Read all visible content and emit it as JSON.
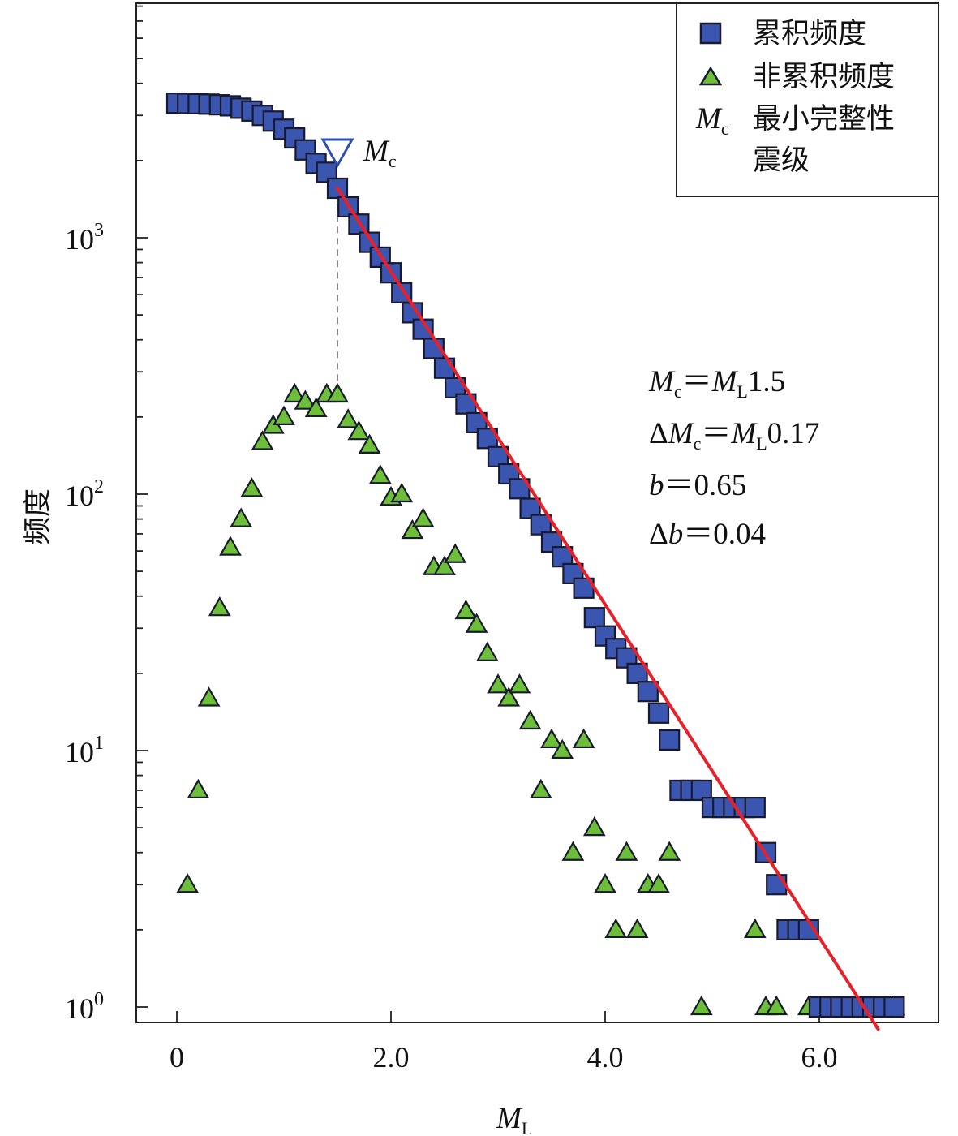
{
  "chart_data": {
    "type": "scatter",
    "title": "",
    "xlabel": {
      "main": "M",
      "sub": "L"
    },
    "ylabel": "频度",
    "yscale": "log",
    "xlim": [
      -0.35,
      7.1
    ],
    "ylim": [
      0.8,
      7500
    ],
    "xticks": [
      {
        "value": 0,
        "label": "0"
      },
      {
        "value": 2,
        "label": "2.0"
      },
      {
        "value": 4,
        "label": "4.0"
      },
      {
        "value": 6,
        "label": "6.0"
      }
    ],
    "yticks": [
      {
        "value": 1,
        "base": "10",
        "exp": "0"
      },
      {
        "value": 10,
        "base": "10",
        "exp": "1"
      },
      {
        "value": 100,
        "base": "10",
        "exp": "2"
      },
      {
        "value": 1000,
        "base": "10",
        "exp": "3"
      }
    ],
    "grid": false,
    "legend_position": "top-right",
    "series": [
      {
        "name": "累积频度",
        "marker": "square",
        "color": "#3a56b0",
        "points": [
          [
            0.0,
            3350
          ],
          [
            0.1,
            3340
          ],
          [
            0.2,
            3330
          ],
          [
            0.3,
            3320
          ],
          [
            0.4,
            3300
          ],
          [
            0.5,
            3270
          ],
          [
            0.6,
            3200
          ],
          [
            0.7,
            3120
          ],
          [
            0.8,
            3000
          ],
          [
            0.9,
            2850
          ],
          [
            1.0,
            2650
          ],
          [
            1.1,
            2450
          ],
          [
            1.2,
            2200
          ],
          [
            1.3,
            1950
          ],
          [
            1.4,
            1800
          ],
          [
            1.5,
            1560
          ],
          [
            1.6,
            1320
          ],
          [
            1.7,
            1130
          ],
          [
            1.8,
            960
          ],
          [
            1.9,
            840
          ],
          [
            2.0,
            730
          ],
          [
            2.1,
            610
          ],
          [
            2.2,
            510
          ],
          [
            2.3,
            440
          ],
          [
            2.4,
            370
          ],
          [
            2.5,
            310
          ],
          [
            2.6,
            260
          ],
          [
            2.7,
            225
          ],
          [
            2.8,
            190
          ],
          [
            2.9,
            165
          ],
          [
            3.0,
            140
          ],
          [
            3.1,
            120
          ],
          [
            3.2,
            105
          ],
          [
            3.3,
            88
          ],
          [
            3.4,
            76
          ],
          [
            3.5,
            65
          ],
          [
            3.6,
            57
          ],
          [
            3.7,
            49
          ],
          [
            3.8,
            43
          ],
          [
            3.9,
            33
          ],
          [
            4.0,
            28
          ],
          [
            4.1,
            25
          ],
          [
            4.2,
            23
          ],
          [
            4.3,
            20
          ],
          [
            4.4,
            17
          ],
          [
            4.5,
            14
          ],
          [
            4.6,
            11
          ],
          [
            4.7,
            7
          ],
          [
            4.8,
            7
          ],
          [
            4.9,
            7
          ],
          [
            5.0,
            6
          ],
          [
            5.1,
            6
          ],
          [
            5.2,
            6
          ],
          [
            5.3,
            6
          ],
          [
            5.4,
            6
          ],
          [
            5.5,
            4
          ],
          [
            5.6,
            3
          ],
          [
            5.7,
            2
          ],
          [
            5.8,
            2
          ],
          [
            5.9,
            2
          ],
          [
            6.0,
            1
          ],
          [
            6.1,
            1
          ],
          [
            6.2,
            1
          ],
          [
            6.3,
            1
          ],
          [
            6.4,
            1
          ],
          [
            6.5,
            1
          ],
          [
            6.6,
            1
          ],
          [
            6.7,
            1
          ]
        ]
      },
      {
        "name": "非累积频度",
        "marker": "triangle",
        "color": "#6dbf3a",
        "points": [
          [
            0.1,
            3
          ],
          [
            0.2,
            7
          ],
          [
            0.3,
            16
          ],
          [
            0.4,
            36
          ],
          [
            0.5,
            62
          ],
          [
            0.6,
            80
          ],
          [
            0.7,
            105
          ],
          [
            0.8,
            160
          ],
          [
            0.9,
            185
          ],
          [
            1.0,
            200
          ],
          [
            1.1,
            245
          ],
          [
            1.2,
            230
          ],
          [
            1.3,
            215
          ],
          [
            1.4,
            245
          ],
          [
            1.5,
            245
          ],
          [
            1.6,
            195
          ],
          [
            1.7,
            175
          ],
          [
            1.8,
            155
          ],
          [
            1.9,
            118
          ],
          [
            2.0,
            97
          ],
          [
            2.1,
            100
          ],
          [
            2.2,
            72
          ],
          [
            2.3,
            80
          ],
          [
            2.4,
            52
          ],
          [
            2.5,
            52
          ],
          [
            2.6,
            58
          ],
          [
            2.7,
            35
          ],
          [
            2.8,
            31
          ],
          [
            2.9,
            24
          ],
          [
            3.0,
            18
          ],
          [
            3.1,
            16
          ],
          [
            3.2,
            18
          ],
          [
            3.3,
            13
          ],
          [
            3.4,
            7
          ],
          [
            3.5,
            11
          ],
          [
            3.6,
            10
          ],
          [
            3.7,
            4
          ],
          [
            3.8,
            11
          ],
          [
            3.9,
            5
          ],
          [
            4.0,
            3
          ],
          [
            4.1,
            2
          ],
          [
            4.2,
            4
          ],
          [
            4.3,
            2
          ],
          [
            4.4,
            3
          ],
          [
            4.5,
            3
          ],
          [
            4.6,
            4
          ],
          [
            4.9,
            1
          ],
          [
            5.4,
            2
          ],
          [
            5.5,
            1
          ],
          [
            5.6,
            1
          ],
          [
            5.9,
            1
          ],
          [
            6.7,
            1
          ]
        ]
      }
    ],
    "fit_line": {
      "color": "#e8202a",
      "from": [
        1.5,
        1560
      ],
      "to": [
        6.55,
        0.82
      ]
    },
    "mc_marker": {
      "x": 1.5,
      "y": 2150,
      "label_main": "M",
      "label_sub": "c"
    },
    "mc_guide": {
      "x": 1.5,
      "y_from": 250,
      "y_to": 1500
    },
    "annotations": [
      {
        "parts": [
          {
            "t": "M",
            "style": "it"
          },
          {
            "t": "c",
            "style": "sub"
          },
          {
            "t": "＝",
            "style": "n"
          },
          {
            "t": "M",
            "style": "it"
          },
          {
            "t": "L",
            "style": "sub"
          },
          {
            "t": "1.5",
            "style": "n"
          }
        ]
      },
      {
        "parts": [
          {
            "t": "Δ",
            "style": "n"
          },
          {
            "t": "M",
            "style": "it"
          },
          {
            "t": "c",
            "style": "sub"
          },
          {
            "t": "＝",
            "style": "n"
          },
          {
            "t": "M",
            "style": "it"
          },
          {
            "t": "L",
            "style": "sub"
          },
          {
            "t": "0.17",
            "style": "n"
          }
        ]
      },
      {
        "parts": [
          {
            "t": "b",
            "style": "it"
          },
          {
            "t": "＝0.65",
            "style": "n"
          }
        ]
      },
      {
        "parts": [
          {
            "t": "Δ",
            "style": "n"
          },
          {
            "t": "b",
            "style": "it"
          },
          {
            "t": "＝0.04",
            "style": "n"
          }
        ]
      }
    ],
    "legend": {
      "items": [
        {
          "symbol": "square",
          "label": "累积频度"
        },
        {
          "symbol": "triangle",
          "label": "非累积频度"
        },
        {
          "symbol": "text",
          "symbol_main": "M",
          "symbol_sub": "c",
          "label_lines": [
            "最小完整性",
            "震级"
          ]
        }
      ]
    }
  }
}
